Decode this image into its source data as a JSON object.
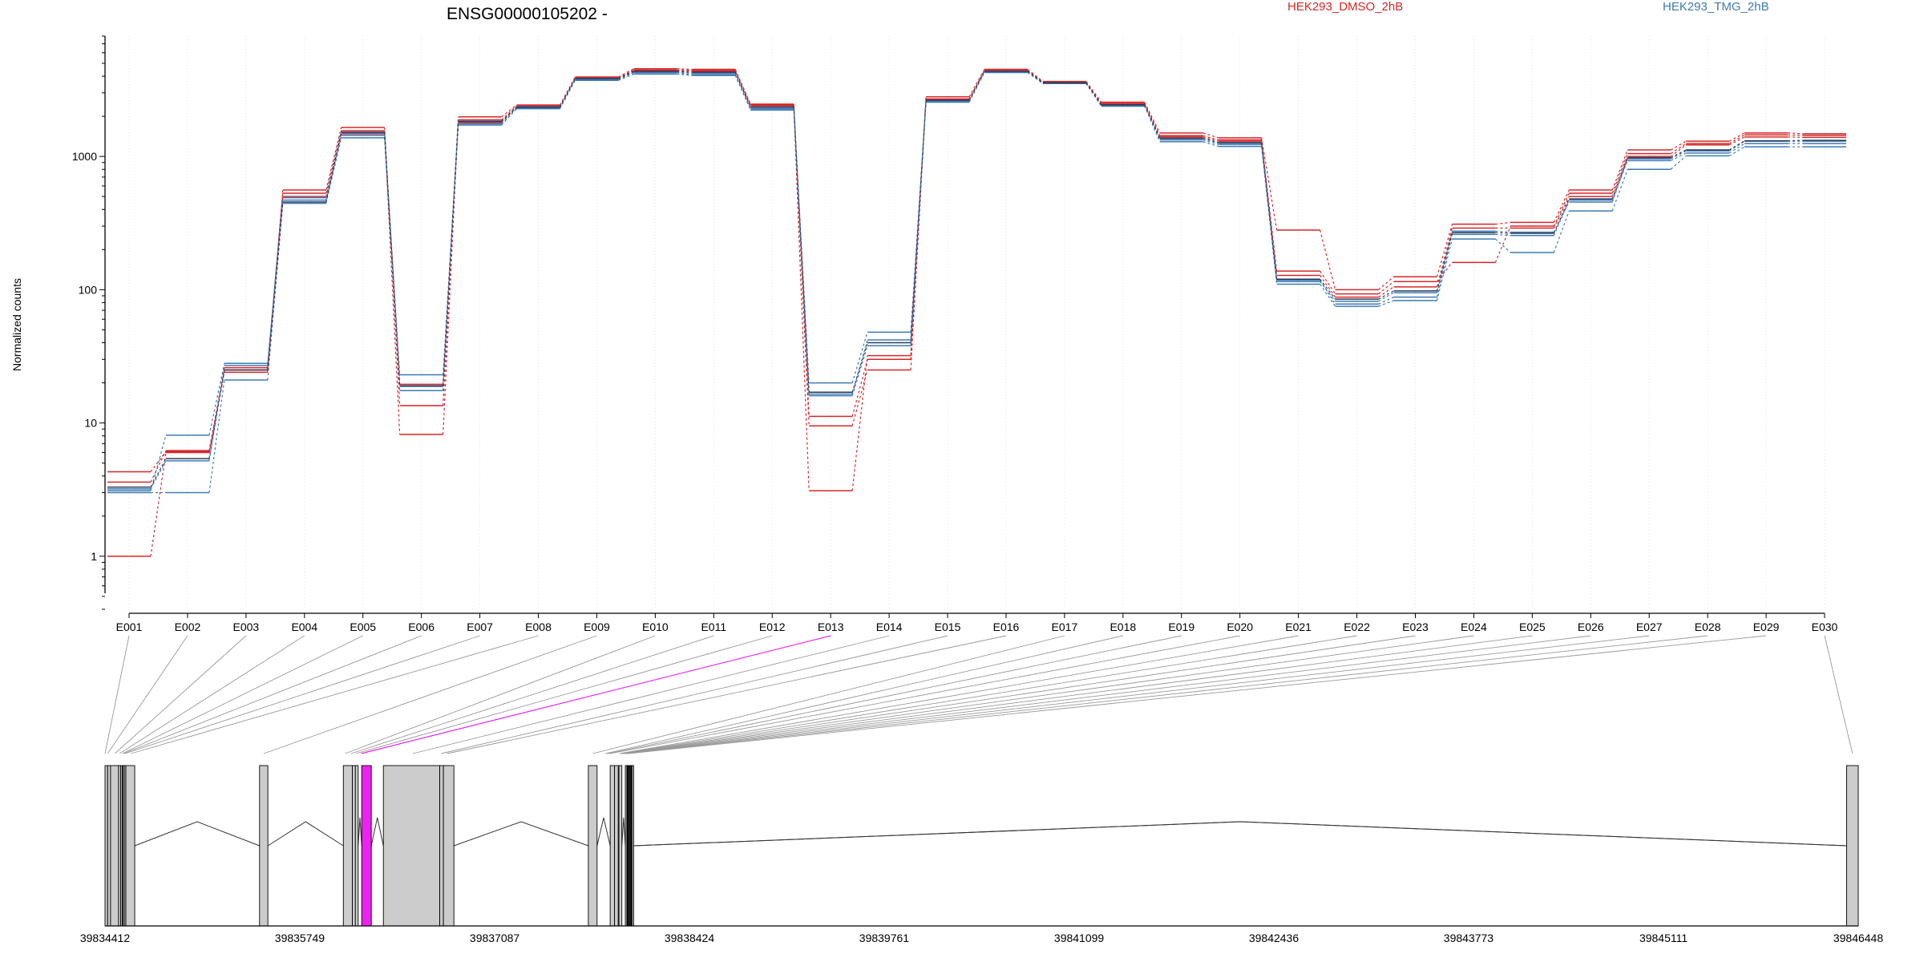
{
  "chart_data": {
    "type": "line",
    "title": "ENSG00000105202 -",
    "ylabel": "Normalized counts",
    "xlabel": "",
    "yscale": "log",
    "ylim": [
      0.4,
      8000
    ],
    "y_ticks": [
      1,
      10,
      100,
      1000
    ],
    "y_tick_labels": [
      "1",
      "10",
      "100",
      "1000"
    ],
    "grid": "vertical dotted",
    "legend_position": "top",
    "categories": [
      "E001",
      "E002",
      "E003",
      "E004",
      "E005",
      "E006",
      "E007",
      "E008",
      "E009",
      "E010",
      "E011",
      "E012",
      "E013",
      "E014",
      "E015",
      "E016",
      "E017",
      "E018",
      "E019",
      "E020",
      "E021",
      "E022",
      "E023",
      "E024",
      "E025",
      "E026",
      "E027",
      "E028",
      "E029",
      "E030"
    ],
    "conditions": [
      {
        "name": "HEK293_DMSO_2hB",
        "color": "#d62728"
      },
      {
        "name": "HEK293_TMG_2hB",
        "color": "#3d7ab3"
      }
    ],
    "series": [
      {
        "condition": 0,
        "color": "#d62728",
        "values": [
          4.3,
          6.1,
          25,
          560,
          1650,
          13.5,
          1980,
          2430,
          3950,
          4550,
          4500,
          2470,
          11.2,
          30,
          2800,
          4500,
          3650,
          2550,
          1500,
          1380,
          280,
          100,
          125,
          310,
          320,
          560,
          1120,
          1300,
          1500,
          1480
        ]
      },
      {
        "condition": 0,
        "color": "#d62728",
        "values": [
          3.6,
          6.2,
          26,
          530,
          1560,
          8.2,
          1880,
          2400,
          3880,
          4450,
          4420,
          2440,
          9.5,
          25,
          2700,
          4420,
          3620,
          2500,
          1430,
          1330,
          138,
          93,
          115,
          160,
          300,
          530,
          1050,
          1250,
          1450,
          1440
        ]
      },
      {
        "condition": 0,
        "color": "#d62728",
        "values": [
          1.0,
          6.0,
          24,
          500,
          1480,
          19.5,
          1800,
          2350,
          3820,
          4400,
          4350,
          2400,
          3.1,
          32,
          2650,
          4380,
          3580,
          2460,
          1400,
          1300,
          128,
          88,
          105,
          290,
          290,
          500,
          1000,
          1220,
          1400,
          1390
        ]
      },
      {
        "condition": 1,
        "color": "#3d7ab3",
        "values": [
          3.1,
          8.1,
          28,
          470,
          1440,
          23,
          1760,
          2300,
          3780,
          4250,
          4100,
          2280,
          20,
          48,
          2570,
          4300,
          3540,
          2410,
          1330,
          1230,
          118,
          78,
          88,
          260,
          255,
          470,
          930,
          1060,
          1250,
          1250
        ]
      },
      {
        "condition": 1,
        "color": "#3d7ab3",
        "values": [
          3.0,
          3.0,
          21,
          445,
          1380,
          17.5,
          1720,
          2280,
          3720,
          4150,
          4050,
          2230,
          16,
          38,
          2550,
          4260,
          3520,
          2380,
          1290,
          1190,
          110,
          75,
          83,
          240,
          190,
          390,
          800,
          1010,
          1180,
          1180
        ]
      },
      {
        "condition": 1,
        "color": "#3d7ab3",
        "values": [
          3.2,
          5.2,
          27,
          490,
          1500,
          18.8,
          1840,
          2360,
          3850,
          4300,
          4200,
          2330,
          16.5,
          42,
          2620,
          4340,
          3560,
          2430,
          1360,
          1260,
          115,
          82,
          95,
          275,
          270,
          455,
          960,
          1100,
          1300,
          1300
        ]
      },
      {
        "condition": 1,
        "color": "#2b3a5a",
        "values": [
          3.3,
          5.4,
          25,
          455,
          1520,
          19,
          1830,
          2340,
          3840,
          4350,
          4280,
          2350,
          17,
          40,
          2640,
          4360,
          3570,
          2440,
          1370,
          1270,
          120,
          85,
          98,
          268,
          265,
          480,
          980,
          1120,
          1310,
          1320
        ]
      }
    ],
    "gene_model": {
      "coord_labels": [
        "39834412",
        "39835749",
        "39837087",
        "39838424",
        "39839761",
        "39841099",
        "39842436",
        "39843773",
        "39845111",
        "39846448"
      ],
      "coord_values": [
        39834412,
        39835749,
        39837087,
        39838424,
        39839761,
        39841099,
        39842436,
        39843773,
        39845111,
        39846448
      ],
      "highlight_exon": "E013",
      "highlight_color": "#ee22ee",
      "exon_color": "#cccccc",
      "blocks": [
        {
          "start": 39834412,
          "end": 39834616
        },
        {
          "start": 39835473,
          "end": 39835530
        },
        {
          "start": 39836048,
          "end": 39836110
        },
        {
          "start": 39836130,
          "end": 39836150
        },
        {
          "start": 39836174,
          "end": 39836240
        },
        {
          "start": 39836323,
          "end": 39836710
        },
        {
          "start": 39836735,
          "end": 39836807
        },
        {
          "start": 39837730,
          "end": 39837790
        },
        {
          "start": 39837880,
          "end": 39837935
        },
        {
          "start": 39837940,
          "end": 39837960
        },
        {
          "start": 39837984,
          "end": 39838040
        }
      ],
      "exons": [
        {
          "id": "E001",
          "start": 39834412,
          "end": 39834430,
          "link_to": 39834412
        },
        {
          "id": "E002",
          "start": 39834430,
          "end": 39834450,
          "link_to": 39834430
        },
        {
          "id": "E003",
          "start": 39834450,
          "end": 39834505,
          "link_to": 39834480
        },
        {
          "id": "E004",
          "start": 39834505,
          "end": 39834520,
          "link_to": 39834512
        },
        {
          "start": 39834520,
          "end": 39834530,
          "link_to": 39834525
        },
        {
          "id": "E005",
          "start": 39834530,
          "end": 39834535,
          "link_to": 39834533
        },
        {
          "id": "E006",
          "start": 39834535,
          "end": 39834545,
          "link_to": 39834540
        },
        {
          "id": "E007",
          "start": 39834545,
          "end": 39834555,
          "link_to": 39834550
        },
        {
          "id": "E008",
          "start": 39834555,
          "end": 39834616,
          "link_to": 39834590
        },
        {
          "id": "E009",
          "start": 39835473,
          "end": 39835530,
          "link_to": 39835501
        },
        {
          "id": "E010",
          "start": 39836048,
          "end": 39836110,
          "link_to": 39836060
        },
        {
          "id": "E011",
          "start": 39836130,
          "end": 39836150,
          "link_to": 39836100
        },
        {
          "id": "E012",
          "start": 39836110,
          "end": 39836130,
          "link_to": 39836135
        },
        {
          "id": "E013",
          "start": 39836174,
          "end": 39836240,
          "link_to": 39836170
        },
        {
          "id": "E014",
          "start": 39836323,
          "end": 39836710,
          "link_to": 39836525
        },
        {
          "id": "E015",
          "start": 39836710,
          "end": 39836735,
          "link_to": 39836720
        },
        {
          "id": "E016",
          "start": 39836735,
          "end": 39836807,
          "link_to": 39836760
        },
        {
          "id": "E017",
          "start": 39837730,
          "end": 39837790,
          "link_to": 39837760
        },
        {
          "id": "E018",
          "start": 39837880,
          "end": 39837910,
          "link_to": 39837847
        },
        {
          "id": "E019",
          "start": 39837910,
          "end": 39837935,
          "link_to": 39837863
        },
        {
          "id": "E020",
          "start": 39837940,
          "end": 39837960,
          "link_to": 39837878
        },
        {
          "id": "E021",
          "start": 39837984,
          "end": 39837995,
          "link_to": 39837945
        },
        {
          "id": "E022",
          "start": 39837995,
          "end": 39838000,
          "link_to": 39837955
        },
        {
          "id": "E023",
          "start": 39838000,
          "end": 39838005,
          "link_to": 39837962
        },
        {
          "id": "E024",
          "start": 39838005,
          "end": 39838010,
          "link_to": 39837968
        },
        {
          "id": "E025",
          "start": 39838010,
          "end": 39838015,
          "link_to": 39837975
        },
        {
          "id": "E026",
          "start": 39838015,
          "end": 39838020,
          "link_to": 39837982
        },
        {
          "id": "E027",
          "start": 39838020,
          "end": 39838025,
          "link_to": 39837989
        },
        {
          "id": "E028",
          "start": 39838025,
          "end": 39838030,
          "link_to": 39837996
        },
        {
          "id": "E029",
          "start": 39838030,
          "end": 39838040,
          "link_to": 39838003
        },
        {
          "id": "E030",
          "start": 39846368,
          "end": 39846448,
          "link_to": 39846408
        }
      ]
    }
  }
}
